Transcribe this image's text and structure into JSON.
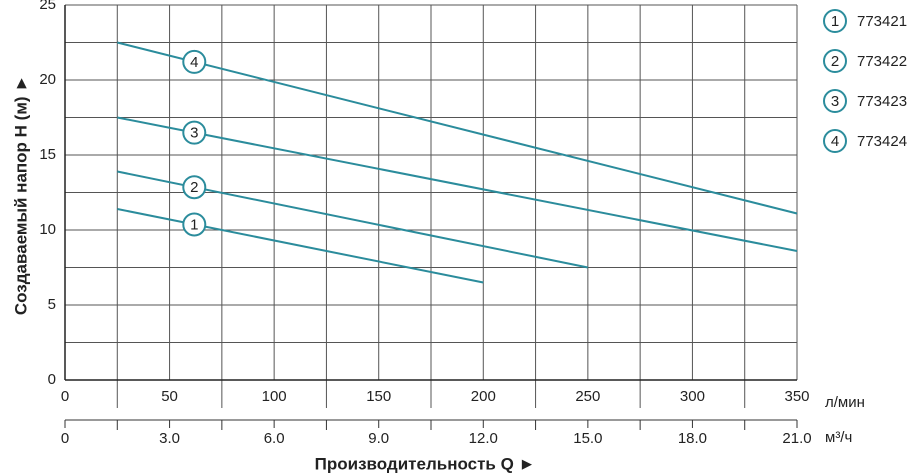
{
  "chart_data": {
    "type": "line",
    "xlabel": "Производительность Q ►",
    "ylabel": "Создаваемый напор H (м) ►",
    "x_unit": "л/мин",
    "x2_unit": "м³/ч",
    "xlim": [
      0,
      350
    ],
    "xticks": [
      0,
      50,
      100,
      150,
      200,
      250,
      300,
      350
    ],
    "x2lim": [
      0,
      21
    ],
    "x2ticks": [
      0,
      {
        "value": 3,
        "label": "3.0"
      },
      {
        "value": 6,
        "label": "6.0"
      },
      {
        "value": 9,
        "label": "9.0"
      },
      {
        "value": 12,
        "label": "12.0"
      },
      {
        "value": 15,
        "label": "15.0"
      },
      {
        "value": 18,
        "label": "18.0"
      },
      {
        "value": 21,
        "label": "21.0"
      }
    ],
    "ylim": [
      0,
      25
    ],
    "yticks": [
      0,
      5,
      10,
      15,
      20,
      25
    ],
    "grid": true,
    "series": [
      {
        "name": "773421",
        "label": "1",
        "color": "#2b8c9c",
        "x": [
          25,
          200
        ],
        "values": [
          11.4,
          6.5
        ]
      },
      {
        "name": "773422",
        "label": "2",
        "color": "#2b8c9c",
        "x": [
          25,
          250
        ],
        "values": [
          13.9,
          7.5
        ]
      },
      {
        "name": "773423",
        "label": "3",
        "color": "#2b8c9c",
        "x": [
          25,
          350
        ],
        "values": [
          17.5,
          8.6
        ]
      },
      {
        "name": "773424",
        "label": "4",
        "color": "#2b8c9c",
        "x": [
          25,
          350
        ],
        "values": [
          22.5,
          11.1
        ]
      }
    ]
  }
}
